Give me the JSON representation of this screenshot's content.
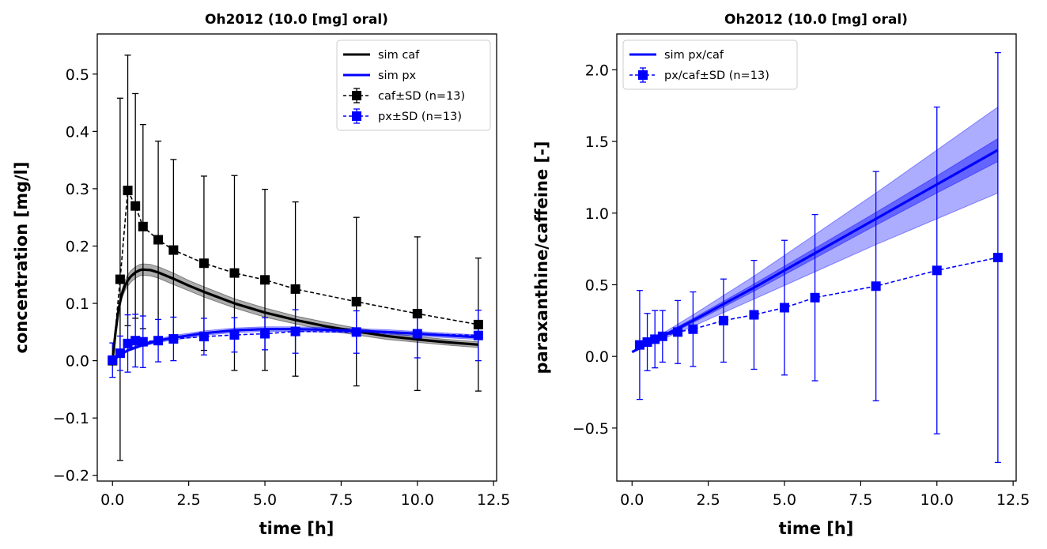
{
  "chart_data": [
    {
      "type": "line",
      "title": "Oh2012 (10.0 [mg] oral)",
      "xlabel": "time [h]",
      "ylabel": "concentration [mg/l]",
      "xlim": [
        -0.5,
        12.6
      ],
      "ylim": [
        -0.21,
        0.57
      ],
      "xticks": [
        0.0,
        2.5,
        5.0,
        7.5,
        10.0,
        12.5
      ],
      "xtick_labels": [
        "0.0",
        "2.5",
        "5.0",
        "7.5",
        "10.0",
        "12.5"
      ],
      "yticks": [
        -0.2,
        -0.1,
        0.0,
        0.1,
        0.2,
        0.3,
        0.4,
        0.5
      ],
      "ytick_labels": [
        "−0.2",
        "−0.1",
        "0.0",
        "0.1",
        "0.2",
        "0.3",
        "0.4",
        "0.5"
      ],
      "grid": false,
      "legend_position": "top-right",
      "legend": [
        "sim caf",
        "sim px",
        "caf±SD (n=13)",
        "px±SD (n=13)"
      ],
      "series": [
        {
          "name": "sim caf",
          "kind": "simulation",
          "color": "#000000",
          "x": [
            0,
            0.1,
            0.2,
            0.3,
            0.4,
            0.5,
            0.6,
            0.75,
            0.9,
            1.0,
            1.25,
            1.5,
            2.0,
            2.5,
            3.0,
            4.0,
            5.0,
            6.0,
            7.0,
            8.0,
            9.0,
            10.0,
            11.0,
            12.0
          ],
          "y": [
            0.0,
            0.05,
            0.09,
            0.115,
            0.13,
            0.14,
            0.147,
            0.154,
            0.158,
            0.159,
            0.158,
            0.154,
            0.143,
            0.131,
            0.12,
            0.1,
            0.084,
            0.071,
            0.06,
            0.051,
            0.043,
            0.037,
            0.032,
            0.028
          ],
          "band_width": [
            0.0,
            0.004,
            0.006,
            0.008,
            0.009,
            0.01,
            0.01,
            0.01,
            0.01,
            0.01,
            0.01,
            0.01,
            0.01,
            0.009,
            0.009,
            0.008,
            0.008,
            0.007,
            0.007,
            0.006,
            0.006,
            0.005,
            0.005,
            0.005
          ]
        },
        {
          "name": "sim px",
          "kind": "simulation",
          "color": "#0000ff",
          "x": [
            0,
            0.25,
            0.5,
            1.0,
            1.5,
            2.0,
            3.0,
            4.0,
            5.0,
            6.0,
            7.0,
            8.0,
            9.0,
            10.0,
            11.0,
            12.0
          ],
          "y": [
            0.0,
            0.01,
            0.018,
            0.028,
            0.035,
            0.04,
            0.048,
            0.053,
            0.055,
            0.055,
            0.054,
            0.052,
            0.05,
            0.047,
            0.044,
            0.041
          ],
          "band_width": [
            0.0,
            0.001,
            0.002,
            0.003,
            0.003,
            0.004,
            0.004,
            0.004,
            0.004,
            0.004,
            0.004,
            0.004,
            0.004,
            0.004,
            0.004,
            0.004
          ]
        },
        {
          "name": "caf±SD (n=13)",
          "kind": "data",
          "color": "#000000",
          "x": [
            0.0,
            0.25,
            0.5,
            0.75,
            1.0,
            1.5,
            2.0,
            3.0,
            4.0,
            5.0,
            6.0,
            8.0,
            10.0,
            12.0
          ],
          "y": [
            0.0,
            0.142,
            0.297,
            0.27,
            0.234,
            0.211,
            0.193,
            0.17,
            0.153,
            0.141,
            0.125,
            0.103,
            0.082,
            0.063
          ],
          "sd": [
            0.0,
            0.316,
            0.236,
            0.196,
            0.178,
            0.172,
            0.158,
            0.152,
            0.17,
            0.158,
            0.152,
            0.147,
            0.134,
            0.116
          ]
        },
        {
          "name": "px±SD (n=13)",
          "kind": "data",
          "color": "#0000ff",
          "x": [
            0.0,
            0.25,
            0.5,
            0.75,
            1.0,
            1.5,
            2.0,
            3.0,
            4.0,
            5.0,
            6.0,
            8.0,
            10.0,
            12.0
          ],
          "y": [
            0.001,
            0.013,
            0.03,
            0.035,
            0.033,
            0.035,
            0.038,
            0.042,
            0.045,
            0.047,
            0.051,
            0.05,
            0.047,
            0.044
          ],
          "sd": [
            0.03,
            0.03,
            0.05,
            0.046,
            0.045,
            0.037,
            0.038,
            0.032,
            0.03,
            0.028,
            0.038,
            0.037,
            0.042,
            0.044
          ]
        }
      ]
    },
    {
      "type": "line",
      "title": "Oh2012 (10.0 [mg] oral)",
      "xlabel": "time [h]",
      "ylabel": "paraxanthine/caffeine [-]",
      "xlim": [
        -0.5,
        12.6
      ],
      "ylim": [
        -0.87,
        2.25
      ],
      "xticks": [
        0.0,
        2.5,
        5.0,
        7.5,
        10.0,
        12.5
      ],
      "xtick_labels": [
        "0.0",
        "2.5",
        "5.0",
        "7.5",
        "10.0",
        "12.5"
      ],
      "yticks": [
        -0.5,
        0.0,
        0.5,
        1.0,
        1.5,
        2.0
      ],
      "ytick_labels": [
        "−0.5",
        "0.0",
        "0.5",
        "1.0",
        "1.5",
        "2.0"
      ],
      "grid": false,
      "legend_position": "top-left",
      "legend": [
        "sim px/caf",
        "px/caf±SD (n=13)"
      ],
      "series": [
        {
          "name": "sim px/caf",
          "kind": "simulation",
          "color": "#0000ff",
          "x": [
            0.0,
            1.0,
            2.0,
            4.0,
            6.0,
            8.0,
            10.0,
            12.0
          ],
          "y": [
            0.03,
            0.14,
            0.25,
            0.48,
            0.72,
            0.96,
            1.2,
            1.44
          ],
          "band_inner": [
            0.0,
            0.01,
            0.015,
            0.025,
            0.035,
            0.045,
            0.06,
            0.08
          ],
          "band_outer": [
            0.0,
            0.02,
            0.04,
            0.08,
            0.13,
            0.18,
            0.24,
            0.3
          ]
        },
        {
          "name": "px/caf±SD (n=13)",
          "kind": "data",
          "color": "#0000ff",
          "x": [
            0.25,
            0.5,
            0.75,
            1.0,
            1.5,
            2.0,
            3.0,
            4.0,
            5.0,
            6.0,
            8.0,
            10.0,
            12.0
          ],
          "y": [
            0.08,
            0.1,
            0.12,
            0.14,
            0.17,
            0.19,
            0.25,
            0.29,
            0.34,
            0.41,
            0.49,
            0.6,
            0.69
          ],
          "sd": [
            0.38,
            0.2,
            0.2,
            0.18,
            0.22,
            0.26,
            0.29,
            0.38,
            0.47,
            0.58,
            0.8,
            1.14,
            1.43
          ]
        }
      ]
    }
  ]
}
